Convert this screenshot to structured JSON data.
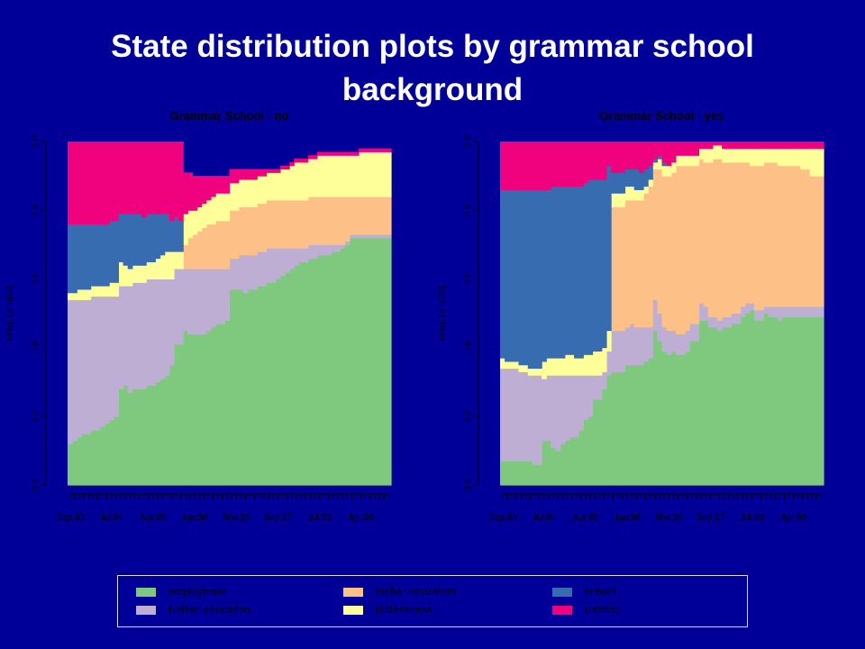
{
  "slide": {
    "title": "State distribution plots by grammar school background"
  },
  "colors": {
    "background": "#000099",
    "employment": "#7FC97F",
    "further education": "#BEAED4",
    "higher education": "#FDC086",
    "joblessness": "#FFFF99",
    "school": "#386CB0",
    "training": "#F0027F"
  },
  "chart_data": [
    {
      "type": "area",
      "subtype": "stacked-step",
      "title": "Grammar School - no",
      "ylabel": "Freq. (n=583)",
      "ylim": [
        0,
        1
      ],
      "yticks": [
        "0.0",
        "0.2",
        "0.4",
        "0.6",
        "0.8",
        "1.0"
      ],
      "x_tick_count": 70,
      "x_tick_labels": [
        "Sep.93",
        "Jul.94",
        "Apr.95",
        "Jan.96",
        "Nov.96",
        "Sep.97",
        "Jul.98",
        "Apr.99"
      ],
      "grid": false,
      "series": [
        {
          "name": "employment",
          "values": [
            0.12,
            0.13,
            0.14,
            0.15,
            0.15,
            0.16,
            0.16,
            0.17,
            0.18,
            0.19,
            0.2,
            0.28,
            0.29,
            0.27,
            0.28,
            0.28,
            0.28,
            0.29,
            0.29,
            0.3,
            0.31,
            0.32,
            0.35,
            0.41,
            0.41,
            0.45,
            0.44,
            0.44,
            0.44,
            0.44,
            0.45,
            0.46,
            0.47,
            0.47,
            0.48,
            0.57,
            0.57,
            0.57,
            0.56,
            0.57,
            0.57,
            0.58,
            0.58,
            0.59,
            0.59,
            0.6,
            0.61,
            0.62,
            0.63,
            0.64,
            0.65,
            0.65,
            0.66,
            0.66,
            0.67,
            0.67,
            0.67,
            0.68,
            0.68,
            0.69,
            0.7,
            0.72,
            0.72,
            0.72,
            0.72,
            0.72,
            0.72,
            0.72,
            0.72,
            0.72
          ]
        },
        {
          "name": "further education",
          "values": [
            0.42,
            0.41,
            0.4,
            0.39,
            0.39,
            0.39,
            0.39,
            0.38,
            0.37,
            0.36,
            0.35,
            0.3,
            0.29,
            0.31,
            0.31,
            0.31,
            0.31,
            0.31,
            0.31,
            0.3,
            0.29,
            0.28,
            0.25,
            0.22,
            0.22,
            0.18,
            0.19,
            0.19,
            0.19,
            0.19,
            0.18,
            0.17,
            0.16,
            0.16,
            0.15,
            0.09,
            0.09,
            0.1,
            0.11,
            0.1,
            0.1,
            0.1,
            0.1,
            0.1,
            0.1,
            0.09,
            0.08,
            0.07,
            0.06,
            0.05,
            0.04,
            0.04,
            0.04,
            0.04,
            0.03,
            0.03,
            0.03,
            0.02,
            0.02,
            0.01,
            0.01,
            0.01,
            0.01,
            0.01,
            0.01,
            0.01,
            0.01,
            0.01,
            0.01,
            0.01
          ]
        },
        {
          "name": "higher education",
          "values": [
            0,
            0,
            0,
            0,
            0,
            0,
            0,
            0,
            0,
            0,
            0,
            0,
            0,
            0,
            0,
            0,
            0,
            0,
            0,
            0,
            0,
            0,
            0,
            0,
            0,
            0.07,
            0.09,
            0.1,
            0.11,
            0.12,
            0.13,
            0.13,
            0.14,
            0.14,
            0.14,
            0.14,
            0.14,
            0.14,
            0.14,
            0.14,
            0.14,
            0.14,
            0.14,
            0.14,
            0.14,
            0.14,
            0.14,
            0.14,
            0.14,
            0.14,
            0.14,
            0.14,
            0.14,
            0.14,
            0.14,
            0.14,
            0.14,
            0.14,
            0.14,
            0.14,
            0.13,
            0.11,
            0.11,
            0.11,
            0.11,
            0.11,
            0.11,
            0.11,
            0.11,
            0.11
          ]
        },
        {
          "name": "joblessness",
          "values": [
            0.02,
            0.02,
            0.03,
            0.03,
            0.03,
            0.03,
            0.03,
            0.03,
            0.03,
            0.04,
            0.04,
            0.07,
            0.06,
            0.05,
            0.05,
            0.05,
            0.05,
            0.05,
            0.05,
            0.06,
            0.07,
            0.08,
            0.08,
            0.05,
            0.05,
            0.09,
            0.08,
            0.07,
            0.07,
            0.07,
            0.07,
            0.08,
            0.08,
            0.08,
            0.08,
            0.08,
            0.08,
            0.08,
            0.08,
            0.08,
            0.08,
            0.08,
            0.08,
            0.08,
            0.08,
            0.08,
            0.09,
            0.09,
            0.1,
            0.11,
            0.11,
            0.11,
            0.11,
            0.11,
            0.12,
            0.12,
            0.12,
            0.12,
            0.12,
            0.12,
            0.12,
            0.12,
            0.12,
            0.13,
            0.13,
            0.13,
            0.13,
            0.13,
            0.13,
            0.13
          ]
        },
        {
          "name": "school",
          "values": [
            0.2,
            0.2,
            0.19,
            0.19,
            0.19,
            0.18,
            0.18,
            0.18,
            0.18,
            0.18,
            0.18,
            0.14,
            0.15,
            0.16,
            0.15,
            0.15,
            0.14,
            0.14,
            0.14,
            0.13,
            0.12,
            0.11,
            0.09,
            0.1,
            0.09,
            0,
            0,
            0,
            0,
            0,
            0,
            0,
            0,
            0,
            0,
            0,
            0,
            0,
            0,
            0,
            0,
            0,
            0,
            0,
            0,
            0,
            0,
            0,
            0,
            0,
            0,
            0,
            0,
            0,
            0,
            0,
            0,
            0,
            0,
            0,
            0,
            0,
            0,
            0,
            0,
            0,
            0,
            0,
            0,
            0
          ]
        },
        {
          "name": "training",
          "values": [
            0.24,
            0.24,
            0.24,
            0.24,
            0.24,
            0.24,
            0.24,
            0.24,
            0.24,
            0.23,
            0.23,
            0.21,
            0.21,
            0.21,
            0.21,
            0.21,
            0.22,
            0.21,
            0.21,
            0.21,
            0.21,
            0.21,
            0.23,
            0.22,
            0.23,
            0.12,
            0.11,
            0.1,
            0.09,
            0.08,
            0.07,
            0.06,
            0.05,
            0.05,
            0.05,
            0.04,
            0.04,
            0.03,
            0.03,
            0.03,
            0.03,
            0.02,
            0.02,
            0.01,
            0.01,
            0.01,
            0.01,
            0.01,
            0.01,
            0.01,
            0.01,
            0.01,
            0.01,
            0.01,
            0.01,
            0.01,
            0.01,
            0.01,
            0.01,
            0.01,
            0.01,
            0.01,
            0.01,
            0.01,
            0.01,
            0.01,
            0.01,
            0.01,
            0.01,
            0.01
          ]
        }
      ]
    },
    {
      "type": "area",
      "subtype": "stacked-step",
      "title": "Grammar School - yes",
      "ylabel": "Freq. (n=129)",
      "ylim": [
        0,
        1
      ],
      "yticks": [
        "0.0",
        "0.2",
        "0.4",
        "0.6",
        "0.8",
        "1.0"
      ],
      "x_tick_count": 70,
      "x_tick_labels": [
        "Sep.93",
        "Jul.94",
        "Apr.95",
        "Jan.96",
        "Nov.96",
        "Sep.97",
        "Jul.98",
        "Apr.99"
      ],
      "grid": false,
      "series": [
        {
          "name": "employment",
          "values": [
            0.07,
            0.07,
            0.07,
            0.07,
            0.07,
            0.07,
            0.07,
            0.06,
            0.06,
            0.13,
            0.13,
            0.11,
            0.1,
            0.12,
            0.13,
            0.14,
            0.14,
            0.16,
            0.19,
            0.2,
            0.25,
            0.25,
            0.28,
            0.32,
            0.33,
            0.33,
            0.33,
            0.35,
            0.35,
            0.35,
            0.35,
            0.36,
            0.37,
            0.45,
            0.42,
            0.39,
            0.38,
            0.39,
            0.38,
            0.38,
            0.39,
            0.42,
            0.42,
            0.48,
            0.48,
            0.46,
            0.46,
            0.45,
            0.46,
            0.46,
            0.47,
            0.47,
            0.49,
            0.5,
            0.51,
            0.48,
            0.48,
            0.5,
            0.49,
            0.49,
            0.48,
            0.49,
            0.49,
            0.49,
            0.49,
            0.49,
            0.49,
            0.49,
            0.49,
            0.49
          ]
        },
        {
          "name": "further education",
          "values": [
            0.27,
            0.27,
            0.27,
            0.27,
            0.26,
            0.26,
            0.25,
            0.26,
            0.26,
            0.18,
            0.19,
            0.21,
            0.22,
            0.2,
            0.19,
            0.18,
            0.18,
            0.16,
            0.13,
            0.12,
            0.07,
            0.07,
            0.05,
            0.07,
            0.12,
            0.12,
            0.12,
            0.11,
            0.12,
            0.11,
            0.11,
            0.1,
            0.09,
            0.09,
            0.08,
            0.07,
            0.07,
            0.06,
            0.06,
            0.06,
            0.06,
            0.05,
            0.05,
            0.05,
            0.04,
            0.03,
            0.03,
            0.03,
            0.03,
            0.03,
            0.03,
            0.03,
            0.03,
            0.03,
            0.02,
            0.03,
            0.03,
            0.02,
            0.03,
            0.03,
            0.04,
            0.03,
            0.03,
            0.03,
            0.03,
            0.03,
            0.03,
            0.03,
            0.03,
            0.03
          ]
        },
        {
          "name": "higher education",
          "values": [
            0,
            0,
            0,
            0,
            0,
            0,
            0,
            0,
            0,
            0,
            0,
            0,
            0,
            0,
            0,
            0,
            0,
            0,
            0,
            0,
            0,
            0,
            0,
            0,
            0.36,
            0.36,
            0.36,
            0.37,
            0.36,
            0.37,
            0.37,
            0.39,
            0.41,
            0.38,
            0.42,
            0.44,
            0.45,
            0.46,
            0.49,
            0.49,
            0.48,
            0.46,
            0.46,
            0.42,
            0.42,
            0.45,
            0.46,
            0.47,
            0.45,
            0.45,
            0.44,
            0.44,
            0.42,
            0.41,
            0.4,
            0.42,
            0.42,
            0.42,
            0.42,
            0.42,
            0.41,
            0.41,
            0.41,
            0.41,
            0.41,
            0.4,
            0.4,
            0.38,
            0.38,
            0.38
          ]
        },
        {
          "name": "joblessness",
          "values": [
            0.03,
            0.02,
            0.02,
            0.02,
            0.02,
            0.02,
            0.02,
            0.02,
            0.02,
            0.05,
            0.05,
            0.05,
            0.05,
            0.05,
            0.06,
            0.06,
            0.05,
            0.05,
            0.06,
            0.06,
            0.07,
            0.07,
            0.07,
            0.06,
            0.04,
            0.04,
            0.04,
            0.04,
            0.04,
            0.03,
            0.03,
            0.02,
            0.02,
            0.02,
            0.03,
            0.03,
            0.03,
            0.03,
            0.03,
            0.03,
            0.03,
            0.03,
            0.03,
            0.03,
            0.04,
            0.04,
            0.04,
            0.04,
            0.04,
            0.04,
            0.04,
            0.04,
            0.04,
            0.04,
            0.05,
            0.05,
            0.05,
            0.04,
            0.04,
            0.04,
            0.05,
            0.05,
            0.05,
            0.05,
            0.05,
            0.06,
            0.06,
            0.08,
            0.08,
            0.08
          ]
        },
        {
          "name": "school",
          "values": [
            0.49,
            0.5,
            0.5,
            0.5,
            0.51,
            0.51,
            0.52,
            0.52,
            0.52,
            0.5,
            0.49,
            0.5,
            0.5,
            0.5,
            0.49,
            0.49,
            0.5,
            0.5,
            0.5,
            0.51,
            0.5,
            0.5,
            0.49,
            0.48,
            0.06,
            0.06,
            0.06,
            0.05,
            0.05,
            0.06,
            0.05,
            0.05,
            0.04,
            0.01,
            0.01,
            0.01,
            0,
            0,
            0,
            0,
            0,
            0,
            0,
            0,
            0,
            0,
            0,
            0,
            0,
            0,
            0,
            0,
            0,
            0,
            0,
            0,
            0,
            0,
            0,
            0,
            0,
            0,
            0,
            0,
            0,
            0,
            0,
            0,
            0,
            0
          ]
        },
        {
          "name": "training",
          "values": [
            0.14,
            0.14,
            0.14,
            0.14,
            0.14,
            0.14,
            0.14,
            0.14,
            0.14,
            0.14,
            0.14,
            0.13,
            0.13,
            0.13,
            0.13,
            0.13,
            0.13,
            0.13,
            0.12,
            0.11,
            0.11,
            0.11,
            0.11,
            0.07,
            0.09,
            0.09,
            0.09,
            0.08,
            0.08,
            0.08,
            0.09,
            0.08,
            0.07,
            0.05,
            0.04,
            0.06,
            0.07,
            0.06,
            0.04,
            0.04,
            0.04,
            0.04,
            0.04,
            0.02,
            0.02,
            0.02,
            0.01,
            0.01,
            0.02,
            0.02,
            0.02,
            0.02,
            0.02,
            0.02,
            0.02,
            0.02,
            0.02,
            0.02,
            0.02,
            0.02,
            0.02,
            0.02,
            0.02,
            0.02,
            0.02,
            0.02,
            0.02,
            0.02,
            0.02,
            0.02
          ]
        }
      ]
    }
  ],
  "legend": {
    "items": [
      {
        "label": "employment",
        "color": "#7FC97F"
      },
      {
        "label": "higher education",
        "color": "#FDC086"
      },
      {
        "label": "school",
        "color": "#386CB0"
      },
      {
        "label": "further education",
        "color": "#BEAED4"
      },
      {
        "label": "joblessness",
        "color": "#FFFF99"
      },
      {
        "label": "training",
        "color": "#F0027F"
      }
    ]
  }
}
